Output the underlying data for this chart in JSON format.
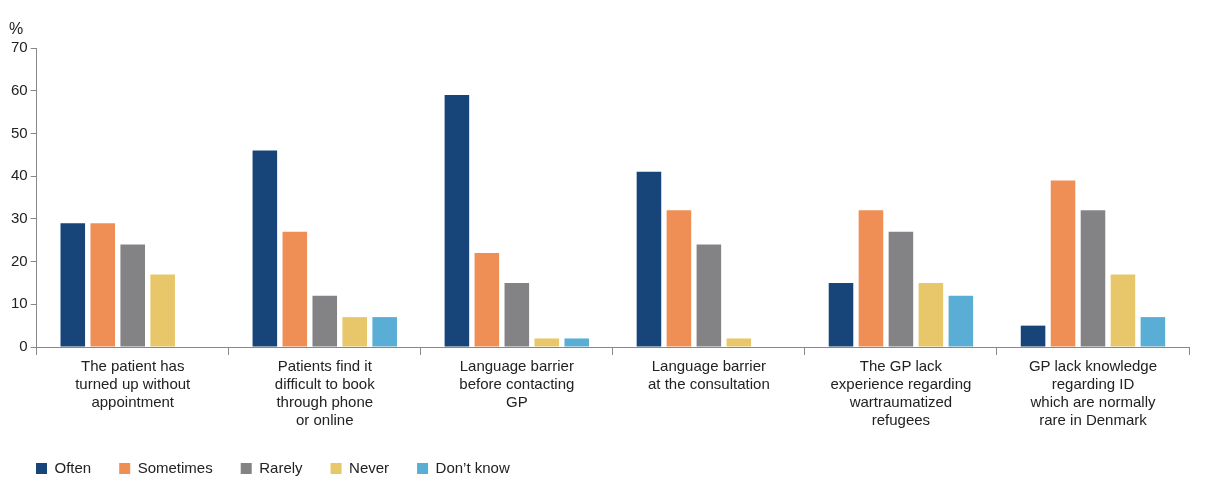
{
  "chart_data": {
    "type": "bar",
    "ylabel": "%",
    "categories": [
      "The patient has\nturned up without\nappointment",
      "Patients find it\ndifficult to book\nthrough phone\nor online",
      "Language barrier\nbefore contacting\nGP",
      "Language barrier\nat the consultation",
      "The GP lack\nexperience regarding\nwartraumatized\nrefugees",
      "GP lack knowledge\nregarding ID\nwhich are normally\nrare in Denmark"
    ],
    "series": [
      {
        "name": "Often",
        "color": "#17457a",
        "values": [
          29,
          46,
          59,
          41,
          15,
          5
        ]
      },
      {
        "name": "Sometimes",
        "color": "#ef8f55",
        "values": [
          29,
          27,
          22,
          32,
          32,
          39
        ]
      },
      {
        "name": "Rarely",
        "color": "#838386",
        "values": [
          24,
          12,
          15,
          24,
          27,
          32
        ]
      },
      {
        "name": "Never",
        "color": "#e8c76a",
        "values": [
          17,
          7,
          2,
          2,
          15,
          17
        ]
      },
      {
        "name": "Don’t know",
        "color": "#5aaed6",
        "values": [
          null,
          7,
          2,
          null,
          12,
          7
        ]
      }
    ],
    "ylim": [
      0,
      70
    ],
    "yticks": [
      0,
      10,
      20,
      30,
      40,
      50,
      60,
      70
    ],
    "grid": false,
    "legend": "bottom left"
  }
}
